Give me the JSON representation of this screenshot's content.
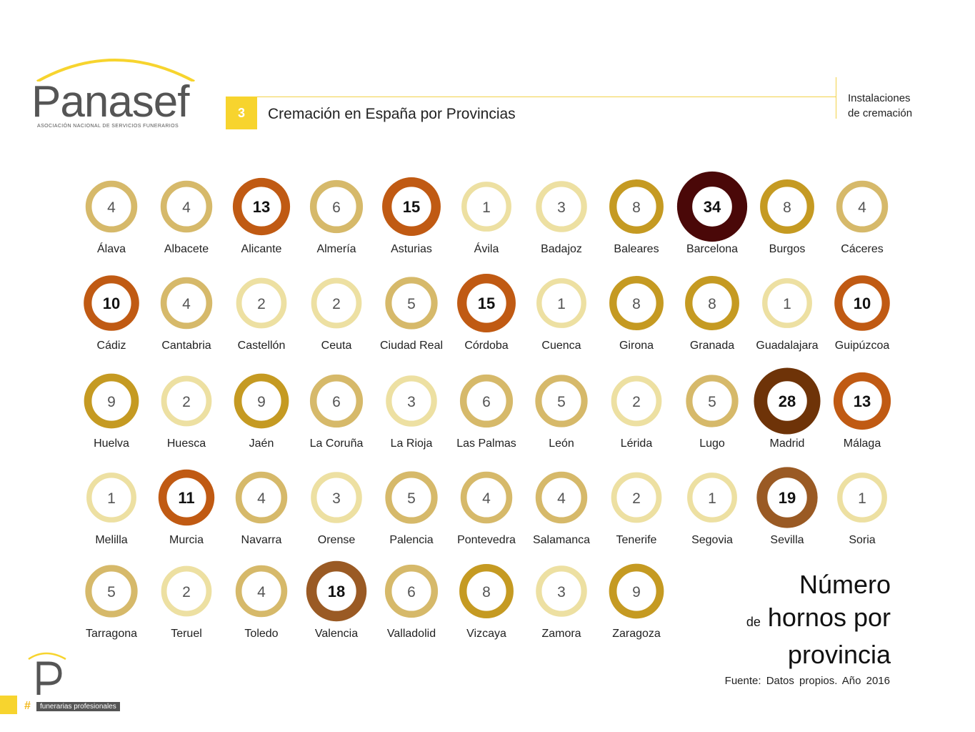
{
  "header": {
    "logo_text": "Panasef",
    "logo_subtitle": "ASOCIACIÓN NACIONAL DE SERVICIOS FUNERARIOS",
    "section_number": "3",
    "title": "Cremación en España por Provincias",
    "section_line1": "Instalaciones",
    "section_line2": "de cremación"
  },
  "side_title": {
    "line1": "Número",
    "line2_small": "de",
    "line2": "hornos por",
    "line3": "provincia"
  },
  "source": "Fuente: Datos propios. Año 2016",
  "footer": {
    "hash": "#",
    "tag": "funerarias profesionales"
  },
  "colors": {
    "accent": "#f7d42e",
    "scale_1_3": "#ede0a2",
    "scale_4_6": "#d6b96a",
    "scale_8_9": "#c59a22",
    "scale_10_15": "#c05a13",
    "scale_18_19": "#9a5a24",
    "scale_28": "#6e3308",
    "scale_34": "#4a0808"
  },
  "chart_data": {
    "type": "table",
    "title": "",
    "categories": [
      "Álava",
      "Albacete",
      "Alicante",
      "Almería",
      "Asturias",
      "Ávila",
      "Badajoz",
      "Baleares",
      "Barcelona",
      "Burgos",
      "Cáceres",
      "Cádiz",
      "Cantabria",
      "Castellón",
      "Ceuta",
      "Ciudad Real",
      "Córdoba",
      "Cuenca",
      "Girona",
      "Granada",
      "Guadalajara",
      "Guipúzcoa",
      "Huelva",
      "Huesca",
      "Jaén",
      "La Coruña",
      "La Rioja",
      "Las Palmas",
      "León",
      "Lérida",
      "Lugo",
      "Madrid",
      "Málaga",
      "Melilla",
      "Murcia",
      "Navarra",
      "Orense",
      "Palencia",
      "Pontevedra",
      "Salamanca",
      "Tenerife",
      "Segovia",
      "Sevilla",
      "Soria",
      "Tarragona",
      "Teruel",
      "Toledo",
      "Valencia",
      "Valladolid",
      "Vizcaya",
      "Zamora",
      "Zaragoza"
    ],
    "values": [
      4,
      4,
      13,
      6,
      15,
      1,
      3,
      8,
      34,
      8,
      4,
      10,
      4,
      2,
      2,
      5,
      15,
      1,
      8,
      8,
      1,
      10,
      9,
      2,
      9,
      6,
      3,
      6,
      5,
      2,
      5,
      28,
      13,
      1,
      11,
      4,
      3,
      5,
      4,
      4,
      2,
      1,
      19,
      1,
      5,
      2,
      4,
      18,
      6,
      8,
      3,
      9
    ]
  }
}
